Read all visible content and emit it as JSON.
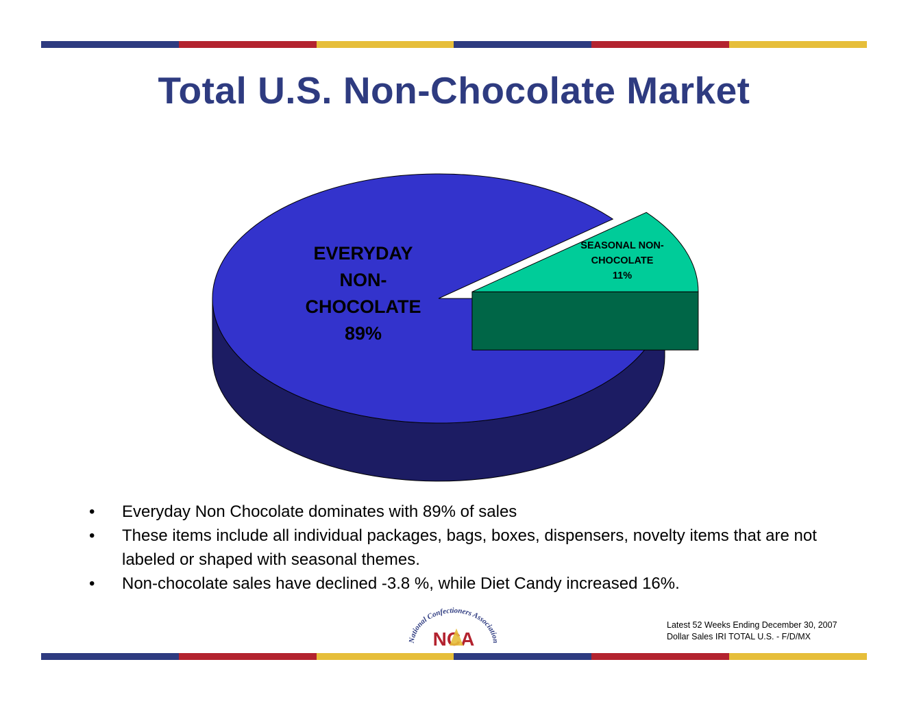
{
  "title": "Total U.S. Non-Chocolate Market",
  "colors": {
    "navy": "#2e3b80",
    "red": "#b3232f",
    "gold": "#e6be3a",
    "everyday_top": "#3333cc",
    "everyday_side": "#1c1c63",
    "seasonal_top": "#00cc99",
    "seasonal_side": "#006647"
  },
  "chart_data": {
    "type": "pie",
    "categories": [
      "EVERYDAY NON-CHOCOLATE",
      "SEASONAL NON-CHOCOLATE"
    ],
    "values": [
      89,
      11
    ],
    "data_labels": [
      {
        "lines": [
          "EVERYDAY",
          "NON-",
          "CHOCOLATE",
          "89%"
        ]
      },
      {
        "lines": [
          "SEASONAL NON-",
          "CHOCOLATE",
          "11%"
        ]
      }
    ],
    "exploded": "SEASONAL NON-CHOCOLATE",
    "style": "3d"
  },
  "bullets": [
    "Everyday Non Chocolate dominates with 89% of sales",
    "These items include all individual packages, bags, boxes, dispensers, novelty items that are not labeled or shaped with seasonal themes.",
    "Non-chocolate sales have declined  -3.8 %, while Diet Candy increased 16%."
  ],
  "bullet_marker": "•",
  "source": {
    "line1": "Latest 52 Weeks Ending December 30, 2007",
    "line2": "Dollar Sales IRI TOTAL U.S. - F/D/MX"
  },
  "logo": {
    "arc_text": "National Confectioners Association",
    "mark": "NCA"
  }
}
